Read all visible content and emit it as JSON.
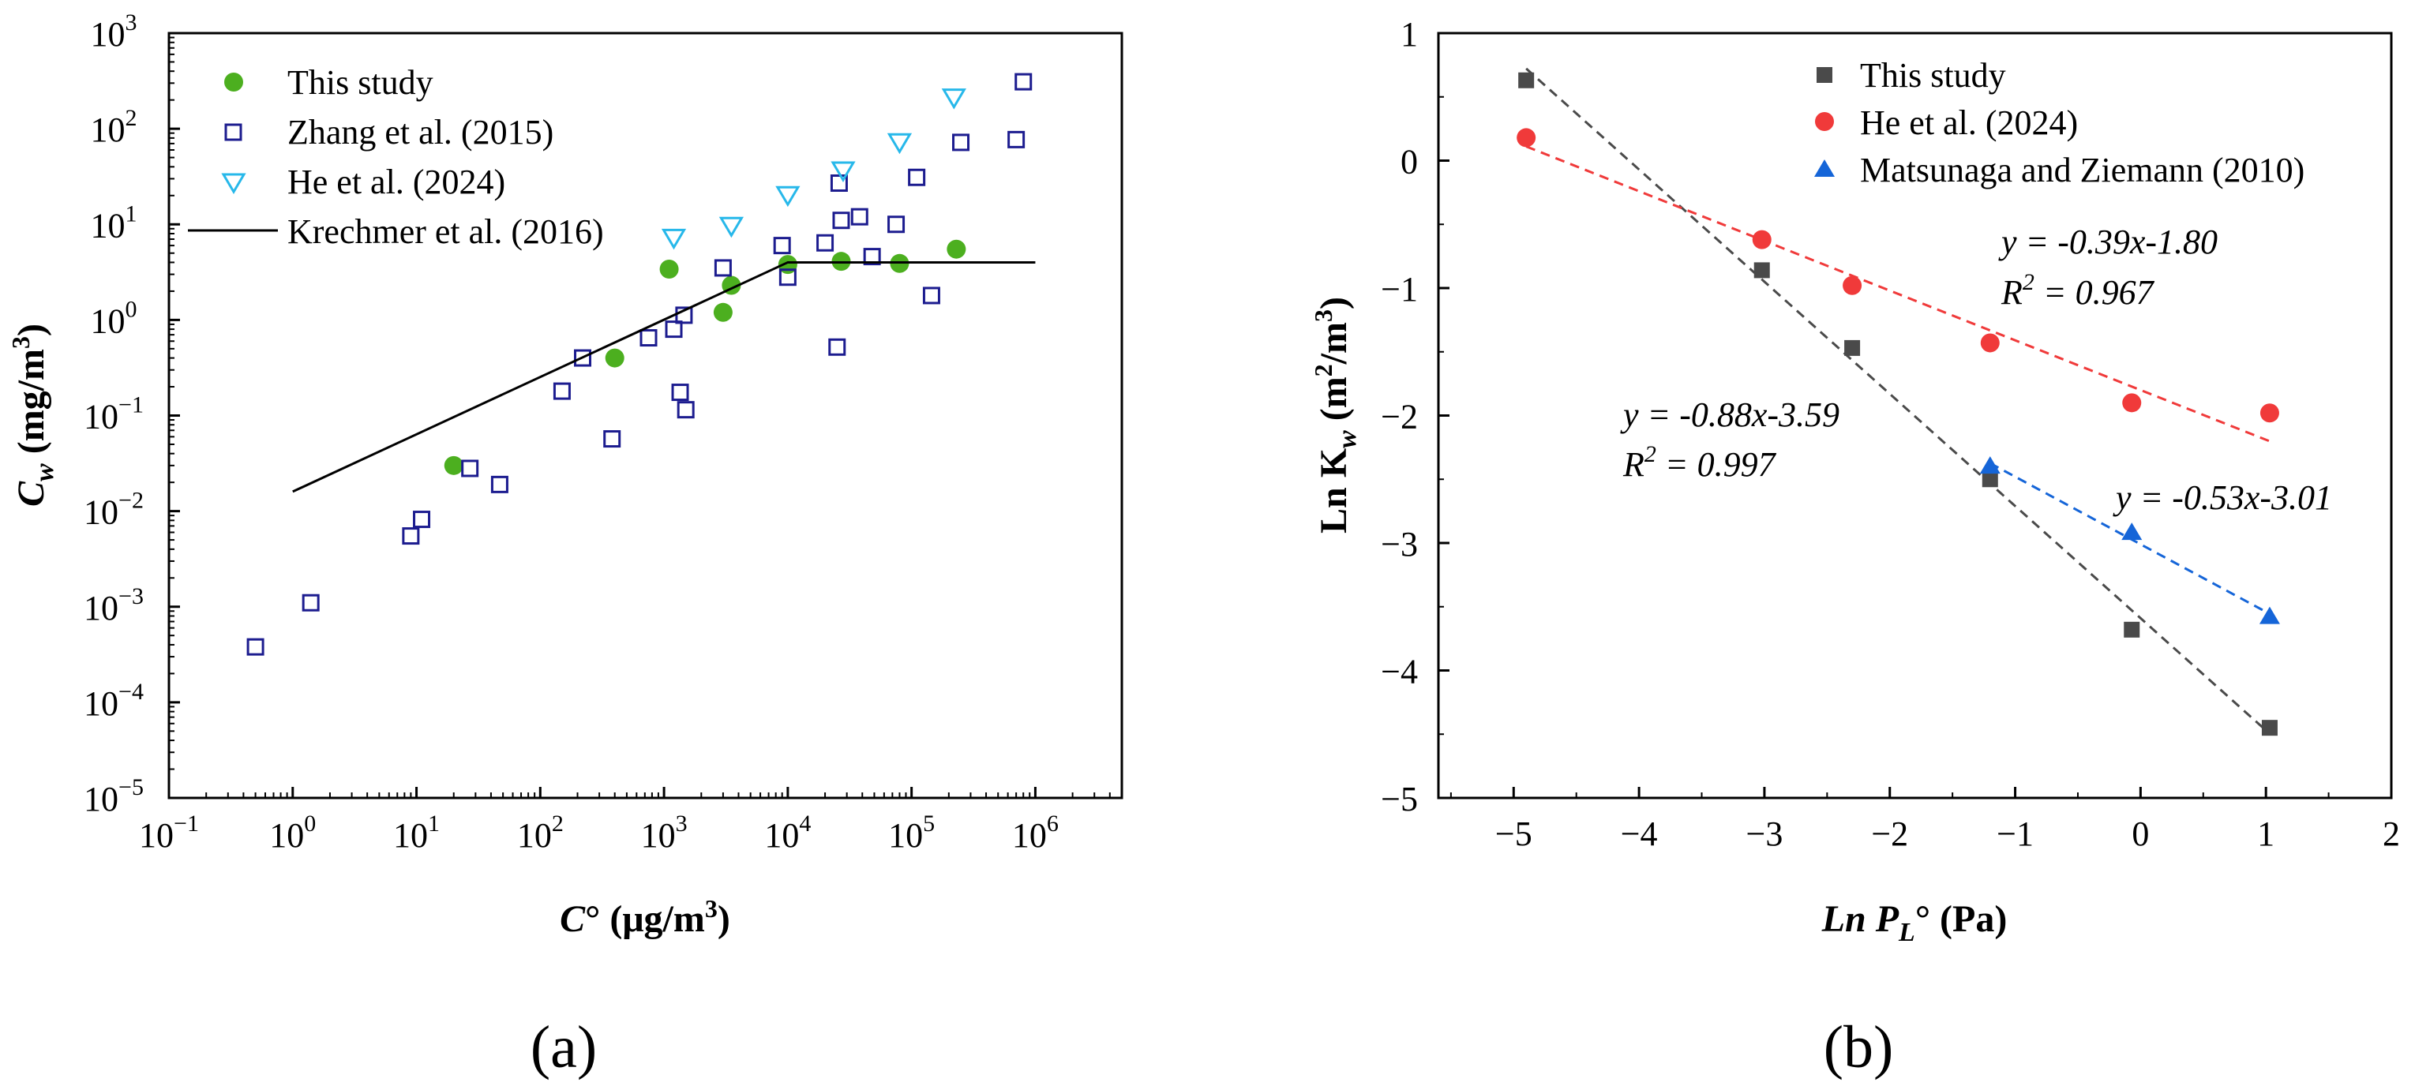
{
  "chart_data": [
    {
      "panel": "(a)",
      "type": "scatter",
      "xscale": "log",
      "yscale": "log",
      "xlim": [
        0.1,
        5000000
      ],
      "ylim": [
        1e-05,
        1000
      ],
      "xlabel": {
        "main": "C",
        "suffix": "° (μg/m",
        "sup": "3",
        "close": ")"
      },
      "ylabel": {
        "main": "C",
        "sub": "w",
        "suffix": " (mg/m",
        "sup": "3",
        "close": ")"
      },
      "xticks": [
        {
          "base": "10",
          "exp": "−1",
          "value": 0.1
        },
        {
          "base": "10",
          "exp": "0",
          "value": 1
        },
        {
          "base": "10",
          "exp": "1",
          "value": 10
        },
        {
          "base": "10",
          "exp": "2",
          "value": 100
        },
        {
          "base": "10",
          "exp": "3",
          "value": 1000
        },
        {
          "base": "10",
          "exp": "4",
          "value": 10000
        },
        {
          "base": "10",
          "exp": "5",
          "value": 100000
        },
        {
          "base": "10",
          "exp": "6",
          "value": 1000000
        }
      ],
      "yticks": [
        {
          "base": "10",
          "exp": "−5",
          "value": 1e-05
        },
        {
          "base": "10",
          "exp": "−4",
          "value": 0.0001
        },
        {
          "base": "10",
          "exp": "−3",
          "value": 0.001
        },
        {
          "base": "10",
          "exp": "−2",
          "value": 0.01
        },
        {
          "base": "10",
          "exp": "−1",
          "value": 0.1
        },
        {
          "base": "10",
          "exp": "0",
          "value": 1
        },
        {
          "base": "10",
          "exp": "1",
          "value": 10
        },
        {
          "base": "10",
          "exp": "2",
          "value": 100
        },
        {
          "base": "10",
          "exp": "3",
          "value": 1000
        }
      ],
      "legend_position": "top-left",
      "series": [
        {
          "name": "This study",
          "marker": "filled-circle",
          "color": "#4caf1f",
          "points": [
            [
              20,
              0.03
            ],
            [
              400,
              0.4
            ],
            [
              1100,
              3.4
            ],
            [
              3000,
              1.2
            ],
            [
              3500,
              2.3
            ],
            [
              10000,
              3.8
            ],
            [
              27000,
              4.1
            ],
            [
              80000,
              3.9
            ],
            [
              230000,
              5.5
            ]
          ]
        },
        {
          "name": "Zhang et al. (2015)",
          "marker": "open-square",
          "color": "#1c1c8f",
          "points": [
            [
              0.5,
              0.00038
            ],
            [
              1.4,
              0.0011
            ],
            [
              9,
              0.0055
            ],
            [
              11,
              0.0082
            ],
            [
              27,
              0.028
            ],
            [
              47,
              0.019
            ],
            [
              150,
              0.18
            ],
            [
              220,
              0.4
            ],
            [
              380,
              0.057
            ],
            [
              750,
              0.65
            ],
            [
              1200,
              0.8
            ],
            [
              1450,
              1.12
            ],
            [
              1350,
              0.175
            ],
            [
              1500,
              0.115
            ],
            [
              3000,
              3.5
            ],
            [
              9000,
              6
            ],
            [
              10000,
              2.8
            ],
            [
              20000,
              6.4
            ],
            [
              25000,
              0.52
            ],
            [
              26000,
              27
            ],
            [
              27000,
              11
            ],
            [
              38000,
              12
            ],
            [
              48000,
              4.6
            ],
            [
              75000,
              10
            ],
            [
              110000,
              31
            ],
            [
              145000,
              1.8
            ],
            [
              250000,
              72
            ],
            [
              700000,
              77
            ],
            [
              800000,
              310
            ]
          ]
        },
        {
          "name": "He et al. (2024)",
          "marker": "open-triangle-down",
          "color": "#27b8ea",
          "points": [
            [
              1200,
              7.5
            ],
            [
              3500,
              10
            ],
            [
              10000,
              21
            ],
            [
              28000,
              38
            ],
            [
              80000,
              75
            ],
            [
              220000,
              220
            ]
          ]
        },
        {
          "name": "Krechmer et al. (2016)",
          "marker": "line",
          "color": "#000000",
          "points": [
            [
              1,
              0.016
            ],
            [
              10000,
              4
            ],
            [
              1000000,
              4
            ]
          ]
        }
      ]
    },
    {
      "panel": "(b)",
      "type": "scatter",
      "xlim": [
        -5.6,
        2
      ],
      "ylim": [
        -5,
        1
      ],
      "xlabel": {
        "main": "Ln P",
        "sub": "L",
        "suffix": "° (Pa)"
      },
      "ylabel": {
        "main": "Ln K",
        "sub": "w",
        "suffix": " (m",
        "sup": "2",
        "mid": "/m",
        "sup2": "3",
        "close": ")"
      },
      "xticks": [
        {
          "label": "−5",
          "value": -5
        },
        {
          "label": "−4",
          "value": -4
        },
        {
          "label": "−3",
          "value": -3
        },
        {
          "label": "−2",
          "value": -2
        },
        {
          "label": "−1",
          "value": -1
        },
        {
          "label": "0",
          "value": 0
        },
        {
          "label": "1",
          "value": 1
        },
        {
          "label": "2",
          "value": 2
        }
      ],
      "yticks": [
        {
          "label": "−5",
          "value": -5
        },
        {
          "label": "−4",
          "value": -4
        },
        {
          "label": "−3",
          "value": -3
        },
        {
          "label": "−2",
          "value": -2
        },
        {
          "label": "−1",
          "value": -1
        },
        {
          "label": "0",
          "value": 0
        },
        {
          "label": "1",
          "value": 1
        }
      ],
      "legend_position": "top-right",
      "series": [
        {
          "name": "This study",
          "marker": "filled-square",
          "color": "#4a4a4a",
          "points": [
            [
              -4.9,
              0.63
            ],
            [
              -3.02,
              -0.86
            ],
            [
              -2.3,
              -1.47
            ],
            [
              -1.2,
              -2.5
            ],
            [
              -0.07,
              -3.68
            ],
            [
              1.03,
              -4.45
            ]
          ],
          "fit": {
            "slope": -0.88,
            "intercept": -3.59,
            "x_range": [
              -4.9,
              1.03
            ]
          }
        },
        {
          "name": "He et al. (2024)",
          "marker": "filled-circle",
          "color": "#f03a3a",
          "points": [
            [
              -4.9,
              0.18
            ],
            [
              -3.02,
              -0.62
            ],
            [
              -2.3,
              -0.98
            ],
            [
              -1.2,
              -1.43
            ],
            [
              -0.07,
              -1.9
            ],
            [
              1.03,
              -1.98
            ]
          ],
          "fit": {
            "slope": -0.39,
            "intercept": -1.8,
            "x_range": [
              -4.9,
              1.03
            ]
          }
        },
        {
          "name": "Matsunaga and Ziemann (2010)",
          "marker": "filled-triangle-up",
          "color": "#1565d8",
          "points": [
            [
              -1.2,
              -2.4
            ],
            [
              -0.07,
              -2.92
            ],
            [
              1.03,
              -3.58
            ]
          ],
          "fit": {
            "slope": -0.53,
            "intercept": -3.01,
            "x_range": [
              -1.2,
              1.03
            ]
          }
        }
      ],
      "annotations": [
        {
          "eq": "y = -0.39x-1.80",
          "r2_label": "R",
          "r2_sup": "2",
          "r2_value": " = 0.967"
        },
        {
          "eq": "y = -0.88x-3.59",
          "r2_label": "R",
          "r2_sup": "2",
          "r2_value": " = 0.997"
        },
        {
          "eq": "y = -0.53x-3.01"
        }
      ]
    }
  ]
}
